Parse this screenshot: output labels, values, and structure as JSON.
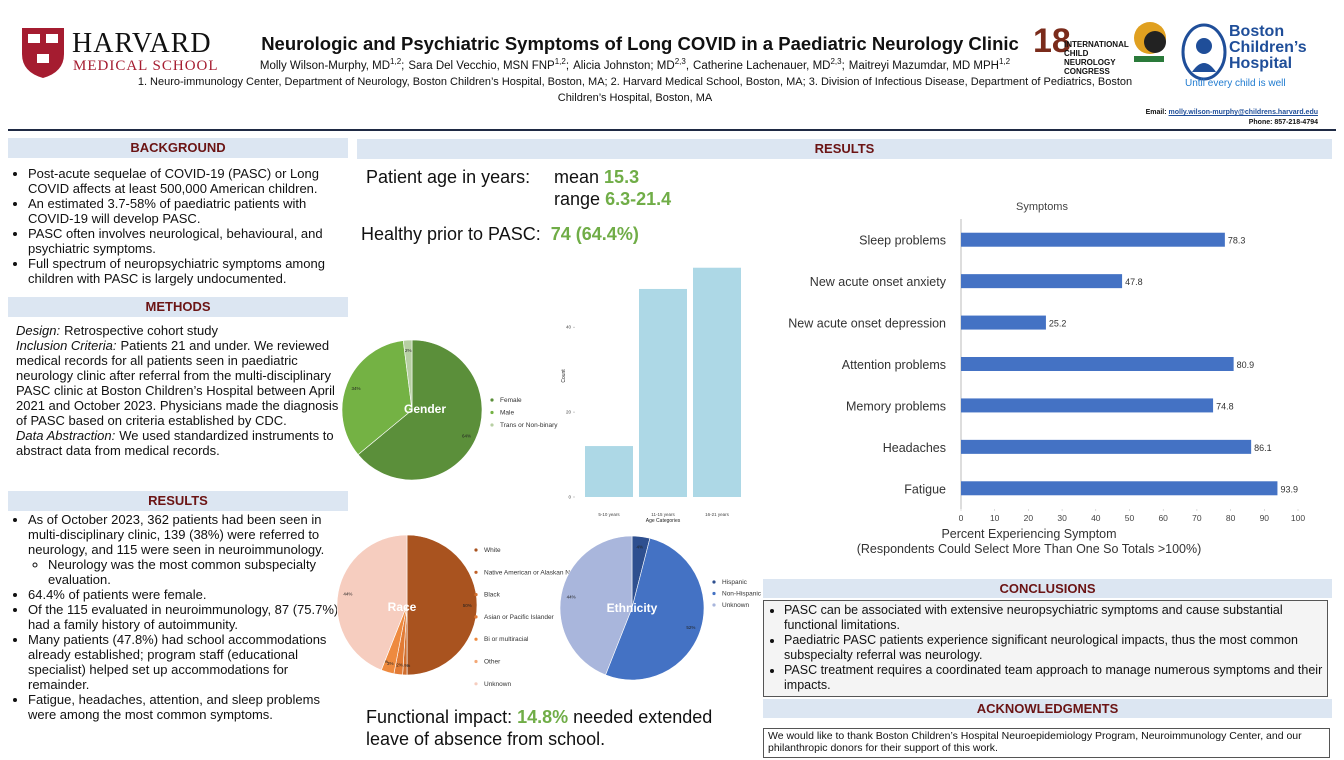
{
  "header": {
    "logo_left": {
      "name": "HARVARD",
      "school": "MEDICAL SCHOOL"
    },
    "title": "Neurologic and Psychiatric Symptoms of Long COVID in a Paediatric Neurology Clinic",
    "authors": [
      {
        "name": "Molly Wilson-Murphy, MD",
        "sup": "1,2",
        "sep": ";"
      },
      {
        "name": "Sara Del Vecchio, MSN FNP",
        "sup": "1,2",
        "sep": ";"
      },
      {
        "name": "Alicia Johnston; MD",
        "sup": "2,3",
        "sep": ","
      },
      {
        "name": "Catherine Lachenauer, MD",
        "sup": "2,3",
        "sep": ";"
      },
      {
        "name": "Maitreyi Mazumdar, MD MPH",
        "sup": "1,2"
      }
    ],
    "affiliations": "1. Neuro-immunology Center, Department of Neurology, Boston Children’s Hospital, Boston, MA; 2. Harvard Medical School, Boston, MA; 3. Division of Infectious Disease, Department of Pediatrics, Boston Children’s Hospital, Boston, MA",
    "congress": {
      "number": "18",
      "name": "INTERNATIONAL CHILD NEUROLOGY CONGRESS"
    },
    "hospital": {
      "name": "Boston Children’s Hospital",
      "tagline": "Until every child is well"
    },
    "contact": {
      "email_label": "Email:",
      "email": "molly.wilson-murphy@childrens.harvard.edu",
      "phone": "Phone: 857-218-4794"
    }
  },
  "background": {
    "heading": "BACKGROUND",
    "bullets": [
      "Post-acute sequelae of COVID-19 (PASC) or Long COVID affects at least 500,000 American children.",
      "An estimated 3.7-58% of paediatric patients with COVID-19 will develop PASC.",
      "PASC often involves neurological, behavioural, and psychiatric symptoms.",
      "Full spectrum of neuropsychiatric symptoms among children with PASC is largely undocumented."
    ]
  },
  "methods": {
    "heading": "METHODS",
    "paragraphs": [
      {
        "label": "Design:",
        "text": "Retrospective cohort study"
      },
      {
        "label": "Inclusion Criteria:",
        "text": "Patients 21 and under. We reviewed medical records for all patients seen in paediatric neurology clinic after referral from the multi-disciplinary PASC clinic at Boston Children’s Hospital between April 2021 and October 2023.  Physicians made the diagnosis of PASC based on criteria established by CDC."
      },
      {
        "label": "Data Abstraction:",
        "text": "We used standardized instruments to abstract data from medical records."
      }
    ]
  },
  "results_summary": {
    "heading": "RESULTS",
    "bullets": [
      {
        "text": "As of October 2023, 362 patients had been seen in multi-disciplinary clinic, 139 (38%) were referred to neurology, and 115 were seen in neuroimmunology.",
        "sub": [
          "Neurology was the most common subspecialty evaluation."
        ]
      },
      {
        "text": "64.4% of patients were female."
      },
      {
        "text": "Of the 115 evaluated in neuroimmunology, 87 (75.7%) had a family history of autoimmunity."
      },
      {
        "text": "Many patients (47.8%) had school accommodations already established; program staff (educational specialist) helped set up accommodations for remainder."
      },
      {
        "text": "Fatigue, headaches, attention, and sleep problems were among the most common symptoms."
      }
    ]
  },
  "results": {
    "heading": "RESULTS",
    "age": {
      "label": "Patient age in years:",
      "mean_label": "mean",
      "mean": 15.3,
      "range_label": "range",
      "range": "6.3-21.4"
    },
    "healthy": {
      "label": "Healthy prior to PASC:",
      "value": "74 (64.4%)"
    },
    "functional": {
      "label": "Functional impact:",
      "value": "14.8%",
      "text": "needed extended leave of absence from school."
    }
  },
  "chart_data": [
    {
      "type": "bar",
      "categories": [
        "5-10 years",
        "11-15 years",
        "16-21 years"
      ],
      "values": [
        12,
        49,
        54
      ],
      "color": "#add8e6",
      "ylim": [
        0,
        57
      ],
      "yticks": [
        0,
        20,
        40
      ],
      "y_label": "Count",
      "x_label": "Age Categories"
    },
    {
      "type": "pie",
      "title": "Gender",
      "categories": [
        "Female",
        "Male",
        "Trans or Non-binary"
      ],
      "values": [
        64,
        34,
        2
      ],
      "value_labels": [
        "64%",
        "34%",
        "2%"
      ],
      "colors": [
        "#5b8f3a",
        "#74b244",
        "#b7cfa3"
      ]
    },
    {
      "type": "pie",
      "title": "Race",
      "categories": [
        "White",
        "Native American or Alaskan Native",
        "Black",
        "Asian or Pacific Islander",
        "Bi or multiracial",
        "Other",
        "Unknown"
      ],
      "values": [
        50,
        0,
        1,
        2,
        3,
        0,
        44
      ],
      "value_labels": [
        "50%",
        "0%",
        "1%",
        "2%",
        "3%",
        "0%",
        "44%"
      ],
      "colors": [
        "#a9531f",
        "#c0622a",
        "#d06e2e",
        "#e27b35",
        "#ee8a3f",
        "#f3a877",
        "#f6cdbf"
      ]
    },
    {
      "type": "pie",
      "title": "Ethnicity",
      "categories": [
        "Hispanic",
        "Non-Hispanic",
        "Unknown"
      ],
      "values": [
        4,
        52,
        44
      ],
      "value_labels": [
        "4%",
        "52%",
        "44%"
      ],
      "colors": [
        "#2e4f8f",
        "#4472c4",
        "#a9b6dc"
      ]
    },
    {
      "type": "barh",
      "title": "Symptoms",
      "categories": [
        "Sleep problems",
        "New acute onset anxiety",
        "New acute onset depression",
        "Attention problems",
        "Memory problems",
        "Headaches",
        "Fatigue"
      ],
      "values": [
        78.3,
        47.8,
        25.2,
        80.9,
        74.8,
        86.1,
        93.9
      ],
      "color": "#4472c4",
      "xlim": [
        0,
        100
      ],
      "xticks": [
        0,
        10,
        20,
        30,
        40,
        50,
        60,
        70,
        80,
        90,
        100
      ],
      "x_label": [
        "Percent Experiencing Symptom",
        "(Respondents Could Select More Than One So Totals >100%)"
      ]
    }
  ],
  "conclusions": {
    "heading": "CONCLUSIONS",
    "bullets": [
      "PASC can be associated with extensive neuropsychiatric symptoms and cause substantial functional limitations.",
      "Paediatric PASC patients experience significant neurological impacts, thus the most common subspecialty referral was neurology.",
      "PASC treatment requires a coordinated team approach to manage numerous symptoms and their impacts."
    ]
  },
  "acknowledgments": {
    "heading": "ACKNOWLEDGMENTS",
    "text": "We would like to thank Boston Children’s Hospital Neuroepidemiology Program, Neuroimmunology Center, and our philanthropic donors for their support of this work."
  }
}
